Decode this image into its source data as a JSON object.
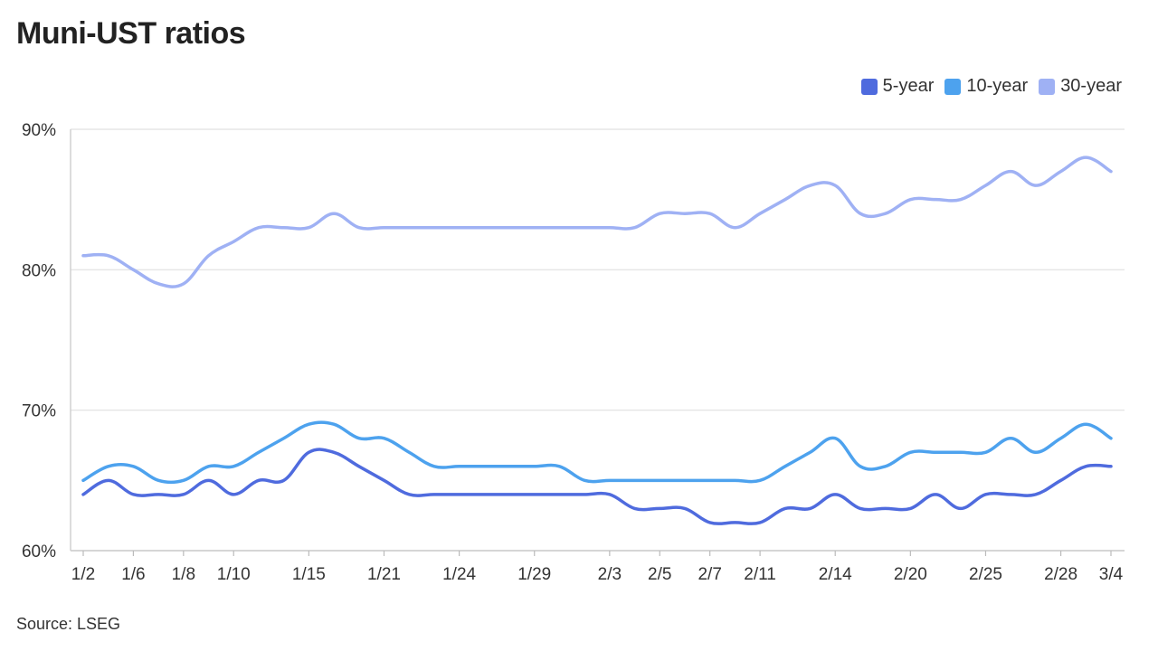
{
  "header": {
    "title": "Muni-UST ratios"
  },
  "footer": {
    "source": "Source: LSEG"
  },
  "legend": {
    "items": [
      {
        "label": "5-year",
        "color": "#4f6bde"
      },
      {
        "label": "10-year",
        "color": "#4da2ee"
      },
      {
        "label": "30-year",
        "color": "#9fb1f4"
      }
    ]
  },
  "chart_data": {
    "type": "line",
    "title": "Muni-UST ratios",
    "xlabel": "",
    "ylabel": "",
    "ylim": [
      60,
      90
    ],
    "yticks": [
      60,
      70,
      80,
      90
    ],
    "ytick_labels": [
      "60%",
      "70%",
      "80%",
      "90%"
    ],
    "grid": true,
    "legend_position": "top-right",
    "x": [
      "1/2",
      "1/3",
      "1/6",
      "1/7",
      "1/8",
      "1/9",
      "1/10",
      "1/13",
      "1/14",
      "1/15",
      "1/16",
      "1/17",
      "1/21",
      "1/22",
      "1/23",
      "1/24",
      "1/27",
      "1/28",
      "1/29",
      "1/30",
      "1/31",
      "2/3",
      "2/4",
      "2/5",
      "2/6",
      "2/7",
      "2/10",
      "2/11",
      "2/12",
      "2/13",
      "2/14",
      "2/18",
      "2/19",
      "2/20",
      "2/21",
      "2/24",
      "2/25",
      "2/26",
      "2/27",
      "2/28",
      "3/3",
      "3/4"
    ],
    "xtick_labels": [
      "1/2",
      "1/6",
      "1/8",
      "1/10",
      "1/15",
      "1/21",
      "1/24",
      "1/29",
      "2/3",
      "2/5",
      "2/7",
      "2/11",
      "2/14",
      "2/20",
      "2/25",
      "2/28",
      "3/4"
    ],
    "series": [
      {
        "name": "5-year",
        "color": "#4f6bde",
        "values": [
          64,
          65,
          64,
          64,
          64,
          65,
          64,
          65,
          65,
          67,
          67,
          66,
          65,
          64,
          64,
          64,
          64,
          64,
          64,
          64,
          64,
          64,
          63,
          63,
          63,
          62,
          62,
          62,
          63,
          63,
          64,
          63,
          63,
          63,
          64,
          63,
          64,
          64,
          64,
          65,
          66,
          66
        ]
      },
      {
        "name": "10-year",
        "color": "#4da2ee",
        "values": [
          65,
          66,
          66,
          65,
          65,
          66,
          66,
          67,
          68,
          69,
          69,
          68,
          68,
          67,
          66,
          66,
          66,
          66,
          66,
          66,
          65,
          65,
          65,
          65,
          65,
          65,
          65,
          65,
          66,
          67,
          68,
          66,
          66,
          67,
          67,
          67,
          67,
          68,
          67,
          68,
          69,
          68
        ]
      },
      {
        "name": "30-year",
        "color": "#9fb1f4",
        "values": [
          81,
          81,
          80,
          79,
          79,
          81,
          82,
          83,
          83,
          83,
          84,
          83,
          83,
          83,
          83,
          83,
          83,
          83,
          83,
          83,
          83,
          83,
          83,
          84,
          84,
          84,
          83,
          84,
          85,
          86,
          86,
          84,
          84,
          85,
          85,
          85,
          86,
          87,
          86,
          87,
          88,
          87
        ]
      }
    ]
  }
}
